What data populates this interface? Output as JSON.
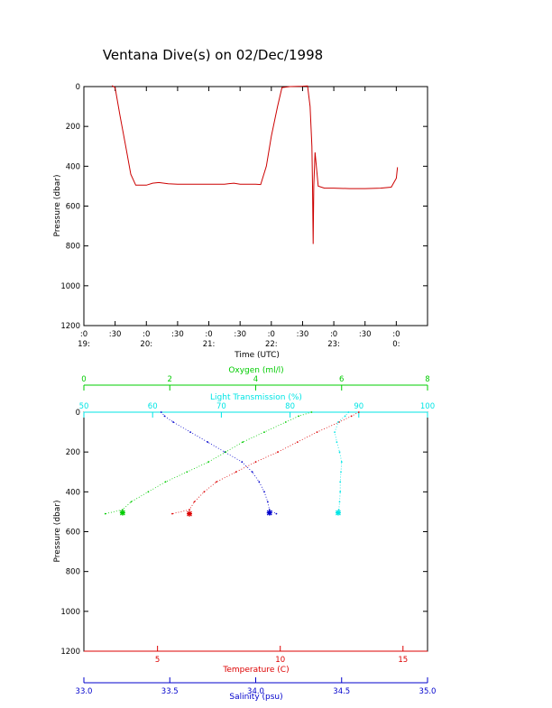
{
  "title": "Ventana Dive(s) on 02/Dec/1998",
  "colors": {
    "pressure_trace": "#cc0000",
    "temperature": "#dd0000",
    "salinity": "#0000cc",
    "oxygen": "#00cc00",
    "transmission": "#00e5e5",
    "axis": "#000000"
  },
  "chart_data": [
    {
      "type": "line",
      "xlabel": "Time (UTC)",
      "ylabel": "Pressure (dbar)",
      "x_unit": "hours since 19:00 UTC",
      "xlim": [
        19.0,
        24.5
      ],
      "ylim": [
        1200,
        0
      ],
      "y_reversed": true,
      "yticks": [
        "0",
        "200",
        "400",
        "600",
        "800",
        "1000",
        "1200"
      ],
      "xticks": [
        {
          "minute": ":0",
          "hour": "19:"
        },
        {
          "minute": ":30",
          "hour": ""
        },
        {
          "minute": ":0",
          "hour": "20:"
        },
        {
          "minute": ":30",
          "hour": ""
        },
        {
          "minute": ":0",
          "hour": "21:"
        },
        {
          "minute": ":30",
          "hour": ""
        },
        {
          "minute": ":0",
          "hour": "22:"
        },
        {
          "minute": ":30",
          "hour": ""
        },
        {
          "minute": ":0",
          "hour": "23:"
        },
        {
          "minute": ":30",
          "hour": ""
        },
        {
          "minute": ":0",
          "hour": "0:"
        }
      ],
      "series": [
        {
          "x": [
            19.45,
            19.5,
            19.58,
            19.67,
            19.75,
            19.83,
            20.0,
            20.1,
            20.2,
            20.35,
            20.5,
            20.75,
            21.0,
            21.25,
            21.4,
            21.5,
            21.75,
            21.83,
            21.92,
            22.0,
            22.1,
            22.17,
            22.3,
            22.5,
            22.58,
            22.62,
            22.65,
            22.66,
            22.67,
            22.68,
            22.7,
            22.75,
            22.85,
            23.0,
            23.25,
            23.5,
            23.75,
            23.92,
            24.0,
            24.02
          ],
          "y": [
            -5,
            5,
            150,
            300,
            440,
            495,
            495,
            485,
            482,
            488,
            490,
            490,
            490,
            490,
            485,
            490,
            490,
            492,
            400,
            250,
            100,
            5,
            0,
            -2,
            -3,
            100,
            300,
            500,
            790,
            500,
            330,
            500,
            510,
            510,
            512,
            512,
            510,
            505,
            460,
            405
          ]
        }
      ]
    },
    {
      "type": "scatter",
      "ylabel": "Pressure (dbar)",
      "ylim": [
        1200,
        0
      ],
      "y_reversed": true,
      "yticks": [
        "0",
        "200",
        "400",
        "600",
        "800",
        "1000",
        "1200"
      ],
      "axes": {
        "oxygen": {
          "label": "Oxygen (ml/l)",
          "range": [
            0,
            8
          ],
          "ticks": [
            "0",
            "2",
            "4",
            "6",
            "8"
          ]
        },
        "transmission": {
          "label": "Light Transmission (%)",
          "range": [
            50,
            100
          ],
          "ticks": [
            "50",
            "60",
            "70",
            "80",
            "90",
            "100"
          ]
        },
        "temperature": {
          "label": "Temperature (C)",
          "range": [
            2,
            16
          ],
          "ticks": [
            "5",
            "10",
            "15"
          ]
        },
        "salinity": {
          "label": "Salinity (psu)",
          "range": [
            33.0,
            35.0
          ],
          "ticks": [
            "33.0",
            "33.5",
            "34.0",
            "34.5",
            "35.0"
          ]
        }
      },
      "series": [
        {
          "key": "temperature",
          "pressure": [
            0,
            20,
            50,
            100,
            150,
            200,
            250,
            300,
            350,
            400,
            450,
            490,
            510
          ],
          "values": [
            13.2,
            12.9,
            12.4,
            11.5,
            10.7,
            9.9,
            9.0,
            8.2,
            7.4,
            6.9,
            6.5,
            6.3,
            5.6
          ]
        },
        {
          "key": "salinity",
          "pressure": [
            0,
            20,
            50,
            100,
            150,
            200,
            250,
            300,
            350,
            400,
            450,
            490,
            510
          ],
          "values": [
            33.45,
            33.47,
            33.52,
            33.62,
            33.72,
            33.82,
            33.92,
            33.98,
            34.02,
            34.05,
            34.07,
            34.08,
            34.12
          ]
        },
        {
          "key": "oxygen",
          "pressure": [
            0,
            20,
            50,
            100,
            150,
            200,
            250,
            300,
            350,
            400,
            450,
            490,
            510
          ],
          "values": [
            5.3,
            5.0,
            4.7,
            4.2,
            3.7,
            3.3,
            2.9,
            2.4,
            1.9,
            1.5,
            1.1,
            0.9,
            0.5
          ]
        },
        {
          "key": "transmission",
          "pressure": [
            0,
            20,
            50,
            100,
            150,
            200,
            250,
            300,
            350,
            400,
            450,
            490,
            510
          ],
          "values": [
            88.5,
            88.0,
            87.0,
            86.5,
            86.8,
            87.2,
            87.5,
            87.4,
            87.3,
            87.3,
            87.2,
            87.1,
            87.0
          ]
        }
      ],
      "markers": [
        {
          "key": "temperature",
          "pressure": 510,
          "value": 6.3
        },
        {
          "key": "salinity",
          "pressure": 505,
          "value": 34.08
        },
        {
          "key": "oxygen",
          "pressure": 505,
          "value": 0.9
        },
        {
          "key": "transmission",
          "pressure": 505,
          "value": 87.0
        }
      ]
    }
  ]
}
